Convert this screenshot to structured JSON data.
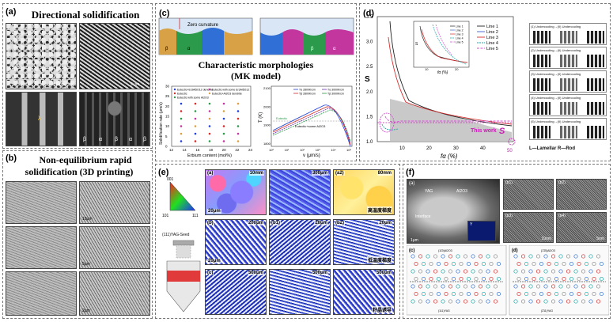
{
  "panels": {
    "a": {
      "label": "(a)",
      "title": "Directional solidification",
      "scales": [
        "50 μm",
        "5 μm"
      ],
      "phases": [
        "β",
        "α",
        "β",
        "α",
        "β"
      ],
      "lambda": "λ",
      "notes": [
        "lamellar",
        "rod"
      ]
    },
    "b": {
      "label": "(b)",
      "title_line1": "Non-equilibrium rapid",
      "title_line2": "solidification (3D printing)",
      "scales": [
        "10μm",
        "5μm",
        "2μm",
        "2μm"
      ]
    },
    "c": {
      "label": "(c)",
      "zero_curvature": "Zero curvature",
      "phase_labels": [
        "β",
        "α",
        "β",
        "α"
      ],
      "title_line1": "Characteristic morphologies",
      "title_line2": "(MK model)",
      "left_plot": {
        "ylabel": "Solidification rate (μm/s)",
        "xlabel": "Erbium content (mol%)",
        "xticks": [
          "12",
          "14",
          "16",
          "18",
          "20",
          "22",
          "24"
        ],
        "yticks": [
          "0",
          "5",
          "10",
          "15",
          "20",
          "25",
          "30"
        ],
        "legend": [
          "Eutectic+Er3Al5O12 dendrite",
          "Eutectic",
          "Eutectic with some Al2O3",
          "Eutectic with some Er3Al5O12",
          "Eutectic+Al2O3 dendrite"
        ]
      },
      "right_plot": {
        "ylabel": "T (K)",
        "xlabel": "v (μm/s)",
        "yticks": [
          "1800",
          "1900",
          "2000",
          "2100"
        ],
        "xticks": [
          "10⁰",
          "10¹",
          "10²",
          "10³",
          "10⁴",
          "10⁵"
        ],
        "legend": [
          "Tα 2800K/cm",
          "Tβ 2800K/cm",
          "Tα 3000K/cm",
          "Tβ 3000K/cm"
        ],
        "annotations": [
          "Eutectic",
          "Eutectic+some Al2O3"
        ]
      }
    },
    "d": {
      "label": "(d)",
      "main_chart": {
        "ylabel": "S",
        "xlabel": "fα (%)",
        "yticks": [
          "1.0",
          "1.5",
          "2.0",
          "2.5",
          "3.0",
          "3.5"
        ],
        "xticks": [
          "10",
          "20",
          "30",
          "40",
          "50"
        ],
        "legend": [
          "Line 1",
          "Line 2",
          "Line 3",
          "Line 4",
          "Line 5"
        ],
        "this_work": "This work",
        "s_marker": "S",
        "endpoint": "50"
      },
      "inset": {
        "ylabel": "S",
        "xlabel": "fα (%)",
        "xticks": [
          "10",
          "20"
        ],
        "legend": [
          "Line 1",
          "Line 2",
          "Line 3",
          "Line 4",
          "Line 5"
        ]
      },
      "side_boxes": [
        "(1) Undercooling→(II) Undercooling",
        "(2) Undercooling→(II) Undercooling",
        "(3) Undercooling→(II) Undercooling",
        "(4) Undercooling→(II) Undercooling",
        "(5) Undercooling→(II) Undercooling"
      ],
      "key": "L—Lamellar   R—Rod"
    },
    "e": {
      "label": "(e)",
      "ipf": [
        "001",
        "101",
        "111"
      ],
      "seed_label": "(111)YAG-Seed",
      "tiles": [
        {
          "label": "(a)",
          "scale": "10mm"
        },
        {
          "label": "",
          "scale": "300μm"
        },
        {
          "label": "(a2)",
          "scale": "80mm"
        },
        {
          "label": "(b)",
          "scale": "200μm"
        },
        {
          "label": "(b1)",
          "scale": "20μm"
        },
        {
          "label": "(b2)",
          "scale": "20μm"
        },
        {
          "label": "(c)",
          "scale": "500μm"
        },
        {
          "label": "",
          "scale": "500μm"
        },
        {
          "label": "",
          "scale": "500μm"
        }
      ],
      "cn_labels": [
        "高温度梯度",
        "低温度梯度",
        "籽晶诱导"
      ],
      "row_scales": [
        "20μm",
        "20μm"
      ]
    },
    "f": {
      "label": "(f)",
      "tem_labels": {
        "a": "(a)",
        "b": "(b)",
        "yag": "YAG",
        "al2o3": "Al2O3",
        "interface": "Interface",
        "y": "Y",
        "scale": "1μm"
      },
      "hr_labels": [
        "(b1)",
        "(b2)",
        "(b3)",
        "(b4)"
      ],
      "hr_scales": [
        "10nm",
        "5nm"
      ],
      "crystal_labels": [
        "(c)",
        "(d)"
      ],
      "planes": [
        "(11̄0)Al2O3",
        "(111)YAG",
        "{1̄1̄0}Al2O3",
        "(2̄11)YAG"
      ]
    }
  },
  "colors": {
    "blue_phase": "#2f6fd6",
    "magenta_phase": "#c2369e",
    "orange_phase": "#d9a145",
    "green_phase": "#2b9a4a",
    "line1": "#1f1f1f",
    "line2": "#3b5fd6",
    "line3": "#d62a2a",
    "line4": "#1aa6a6",
    "line5": "#d64fd6",
    "this_work": "#c21fb0"
  }
}
